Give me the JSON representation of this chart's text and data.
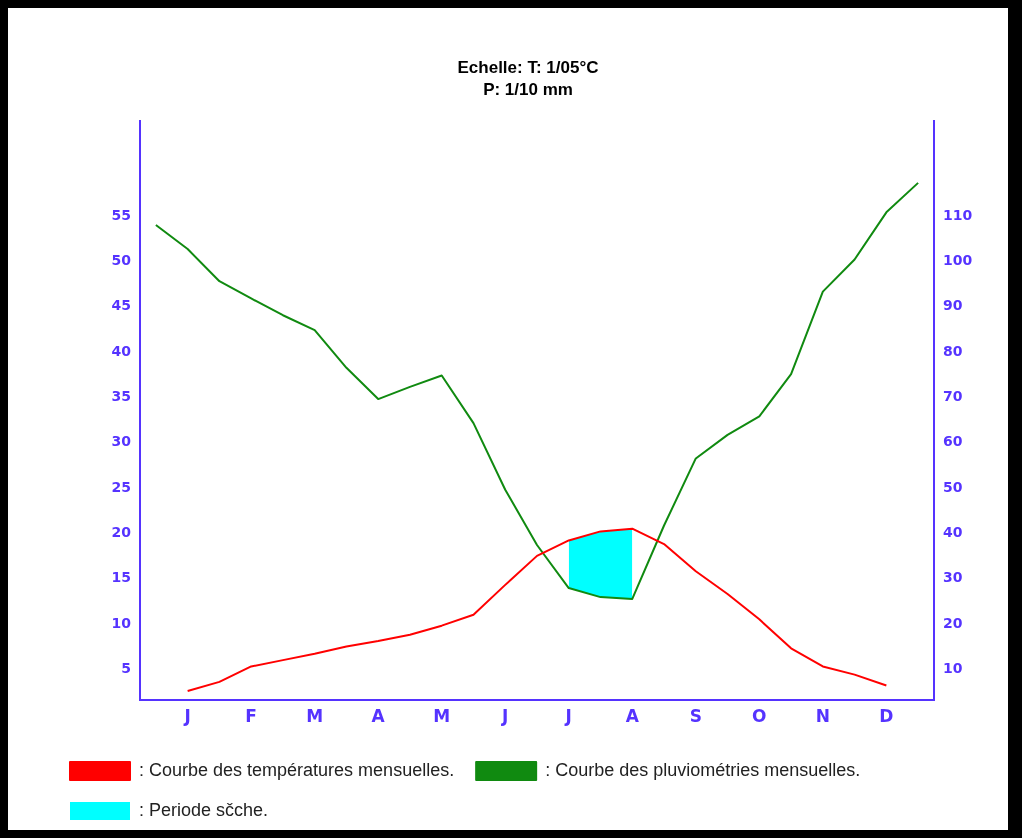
{
  "chart_data": {
    "type": "line",
    "title": "Echelle: T: 1/05°C",
    "subtitle": "P: 1/10 mm",
    "legend": "bottom",
    "marker": "none",
    "line_style": "solid",
    "categories": [
      null,
      "J",
      null,
      "F",
      null,
      "M",
      null,
      "A",
      null,
      "M",
      null,
      "J",
      null,
      "J",
      null,
      "A",
      null,
      "S",
      null,
      "O",
      null,
      "N",
      null,
      "D",
      null
    ],
    "ylim": [
      1.6,
      65.5
    ],
    "yticks": [
      5,
      10,
      15,
      20,
      25,
      30,
      35,
      40,
      45,
      50,
      55
    ],
    "y2lim": [
      3.2,
      131
    ],
    "y2ticks": [
      10,
      20,
      30,
      40,
      50,
      60,
      70,
      80,
      90,
      100,
      110
    ],
    "series": [
      {
        "name": ": Periode sčche.",
        "type": "area",
        "color": "#00ffff",
        "axis": "y",
        "values": [
          null,
          null,
          null,
          null,
          null,
          null,
          null,
          null,
          null,
          null,
          null,
          null,
          null,
          19.2,
          20.2,
          20.5,
          null,
          null,
          null,
          null,
          null,
          null,
          null,
          null,
          null
        ]
      },
      {
        "name": ": Courbe des températures mensuelles.",
        "color": "#ff0000",
        "axis": "y",
        "values": [
          null,
          2.6,
          3.6,
          5.3,
          6.0,
          6.7,
          7.5,
          8.1,
          8.8,
          9.8,
          11.0,
          14.3,
          17.5,
          19.2,
          20.2,
          20.5,
          18.8,
          15.8,
          13.3,
          10.5,
          7.3,
          5.3,
          4.4,
          3.2,
          null
        ]
      },
      {
        "name": ": Courbe des pluviométries mensuelles.",
        "color": "#108a10",
        "axis": "y2",
        "values": [
          108,
          102.7,
          95.6,
          91.8,
          88.1,
          84.8,
          76.5,
          69.6,
          72.3,
          74.8,
          64.3,
          49.6,
          37.4,
          27.9,
          25.9,
          25.5,
          41.7,
          56.5,
          61.7,
          65.8,
          75.1,
          93.3,
          100.4,
          110.8,
          117.3
        ]
      }
    ]
  }
}
